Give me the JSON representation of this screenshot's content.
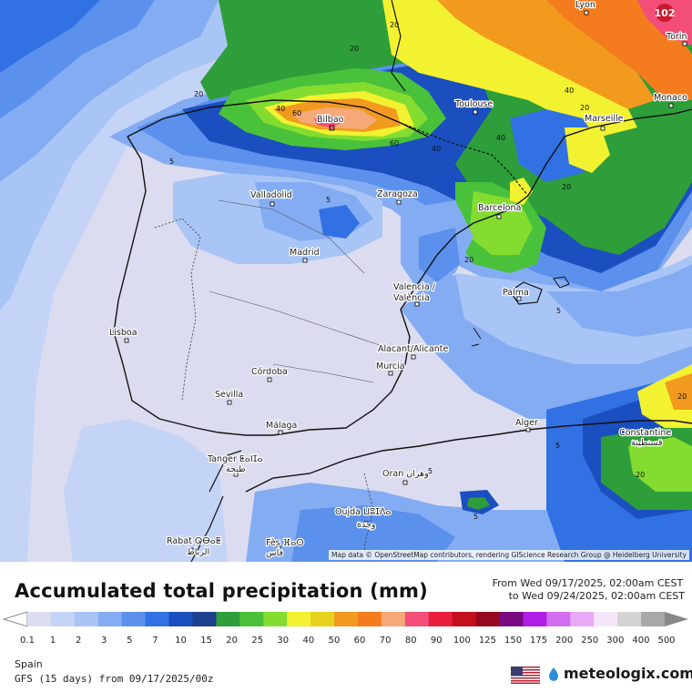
{
  "map": {
    "badge_text": "102",
    "attribution": "Map data © OpenStreetMap contributors, rendering GIScience Research Group @ Heidelberg University",
    "cities": [
      {
        "name": "Lyon"
      },
      {
        "name": "Torin"
      },
      {
        "name": "Bilbao"
      },
      {
        "name": "Toulouse"
      },
      {
        "name": "Monaco"
      },
      {
        "name": "Marseille"
      },
      {
        "name": "Valladolid"
      },
      {
        "name": "Zaragoza"
      },
      {
        "name": "Barcelona"
      },
      {
        "name": "Madrid"
      },
      {
        "name": "Valencia /"
      },
      {
        "name": "València"
      },
      {
        "name": "Palma"
      },
      {
        "name": "Lisboa"
      },
      {
        "name": "Alacant/Alicante"
      },
      {
        "name": "Murcia"
      },
      {
        "name": "Córdoba"
      },
      {
        "name": "Sevilla"
      },
      {
        "name": "Málaga"
      },
      {
        "name": "Alger"
      },
      {
        "name": "Constantine"
      },
      {
        "name": "قسنطينة"
      },
      {
        "name": "Tanger ⵟⴰⵏⵊⴰ"
      },
      {
        "name": "طنجة"
      },
      {
        "name": "Oran وهران"
      },
      {
        "name": "Oujda ⵡⵓⵊⴷⴰ"
      },
      {
        "name": "وجدة"
      },
      {
        "name": "Rabat ⵕⴱⴰⵟ"
      },
      {
        "name": "الرباط"
      },
      {
        "name": "Fès ⴼⴰⵙ"
      },
      {
        "name": "فاس"
      }
    ],
    "contour_labels": [
      "20",
      "20",
      "40",
      "60",
      "20",
      "40",
      "60",
      "40",
      "20",
      "40",
      "5",
      "5",
      "20",
      "20",
      "5",
      "5",
      "5",
      "20",
      "5",
      "20"
    ]
  },
  "header": {
    "title": "Accumulated total precipitation (mm)",
    "period_from": "From Wed 09/17/2025, 02:00am CEST",
    "period_to": "to Wed 09/24/2025, 02:00am CEST"
  },
  "legend": {
    "ticks": [
      "0.1",
      "1",
      "2",
      "3",
      "5",
      "7",
      "10",
      "15",
      "20",
      "25",
      "30",
      "40",
      "50",
      "60",
      "70",
      "80",
      "90",
      "100",
      "125",
      "150",
      "175",
      "200",
      "250",
      "300",
      "400",
      "500"
    ],
    "colors": [
      "#dcdcf0",
      "#c4d4f6",
      "#a9c5f6",
      "#84acf2",
      "#5b90ec",
      "#3271e3",
      "#1b4fbf",
      "#1e3f8c",
      "#2e9e3a",
      "#49c13a",
      "#84dc30",
      "#f2f230",
      "#e6d21e",
      "#f29a1e",
      "#f57c1e",
      "#f5a878",
      "#f24e78",
      "#e8203c",
      "#c4101e",
      "#96081e",
      "#7a0a82",
      "#b01ee6",
      "#d26ef0",
      "#e8aaf5",
      "#f4e6f8",
      "#d4d4d4",
      "#a8a8a8"
    ]
  },
  "footer": {
    "region": "Spain",
    "model": "GFS (15 days) from  09/17/2025/00z",
    "brand": "meteologix.com",
    "flag_icon": "us-flag-icon",
    "logo_icon": "meteologix-logo-icon"
  }
}
